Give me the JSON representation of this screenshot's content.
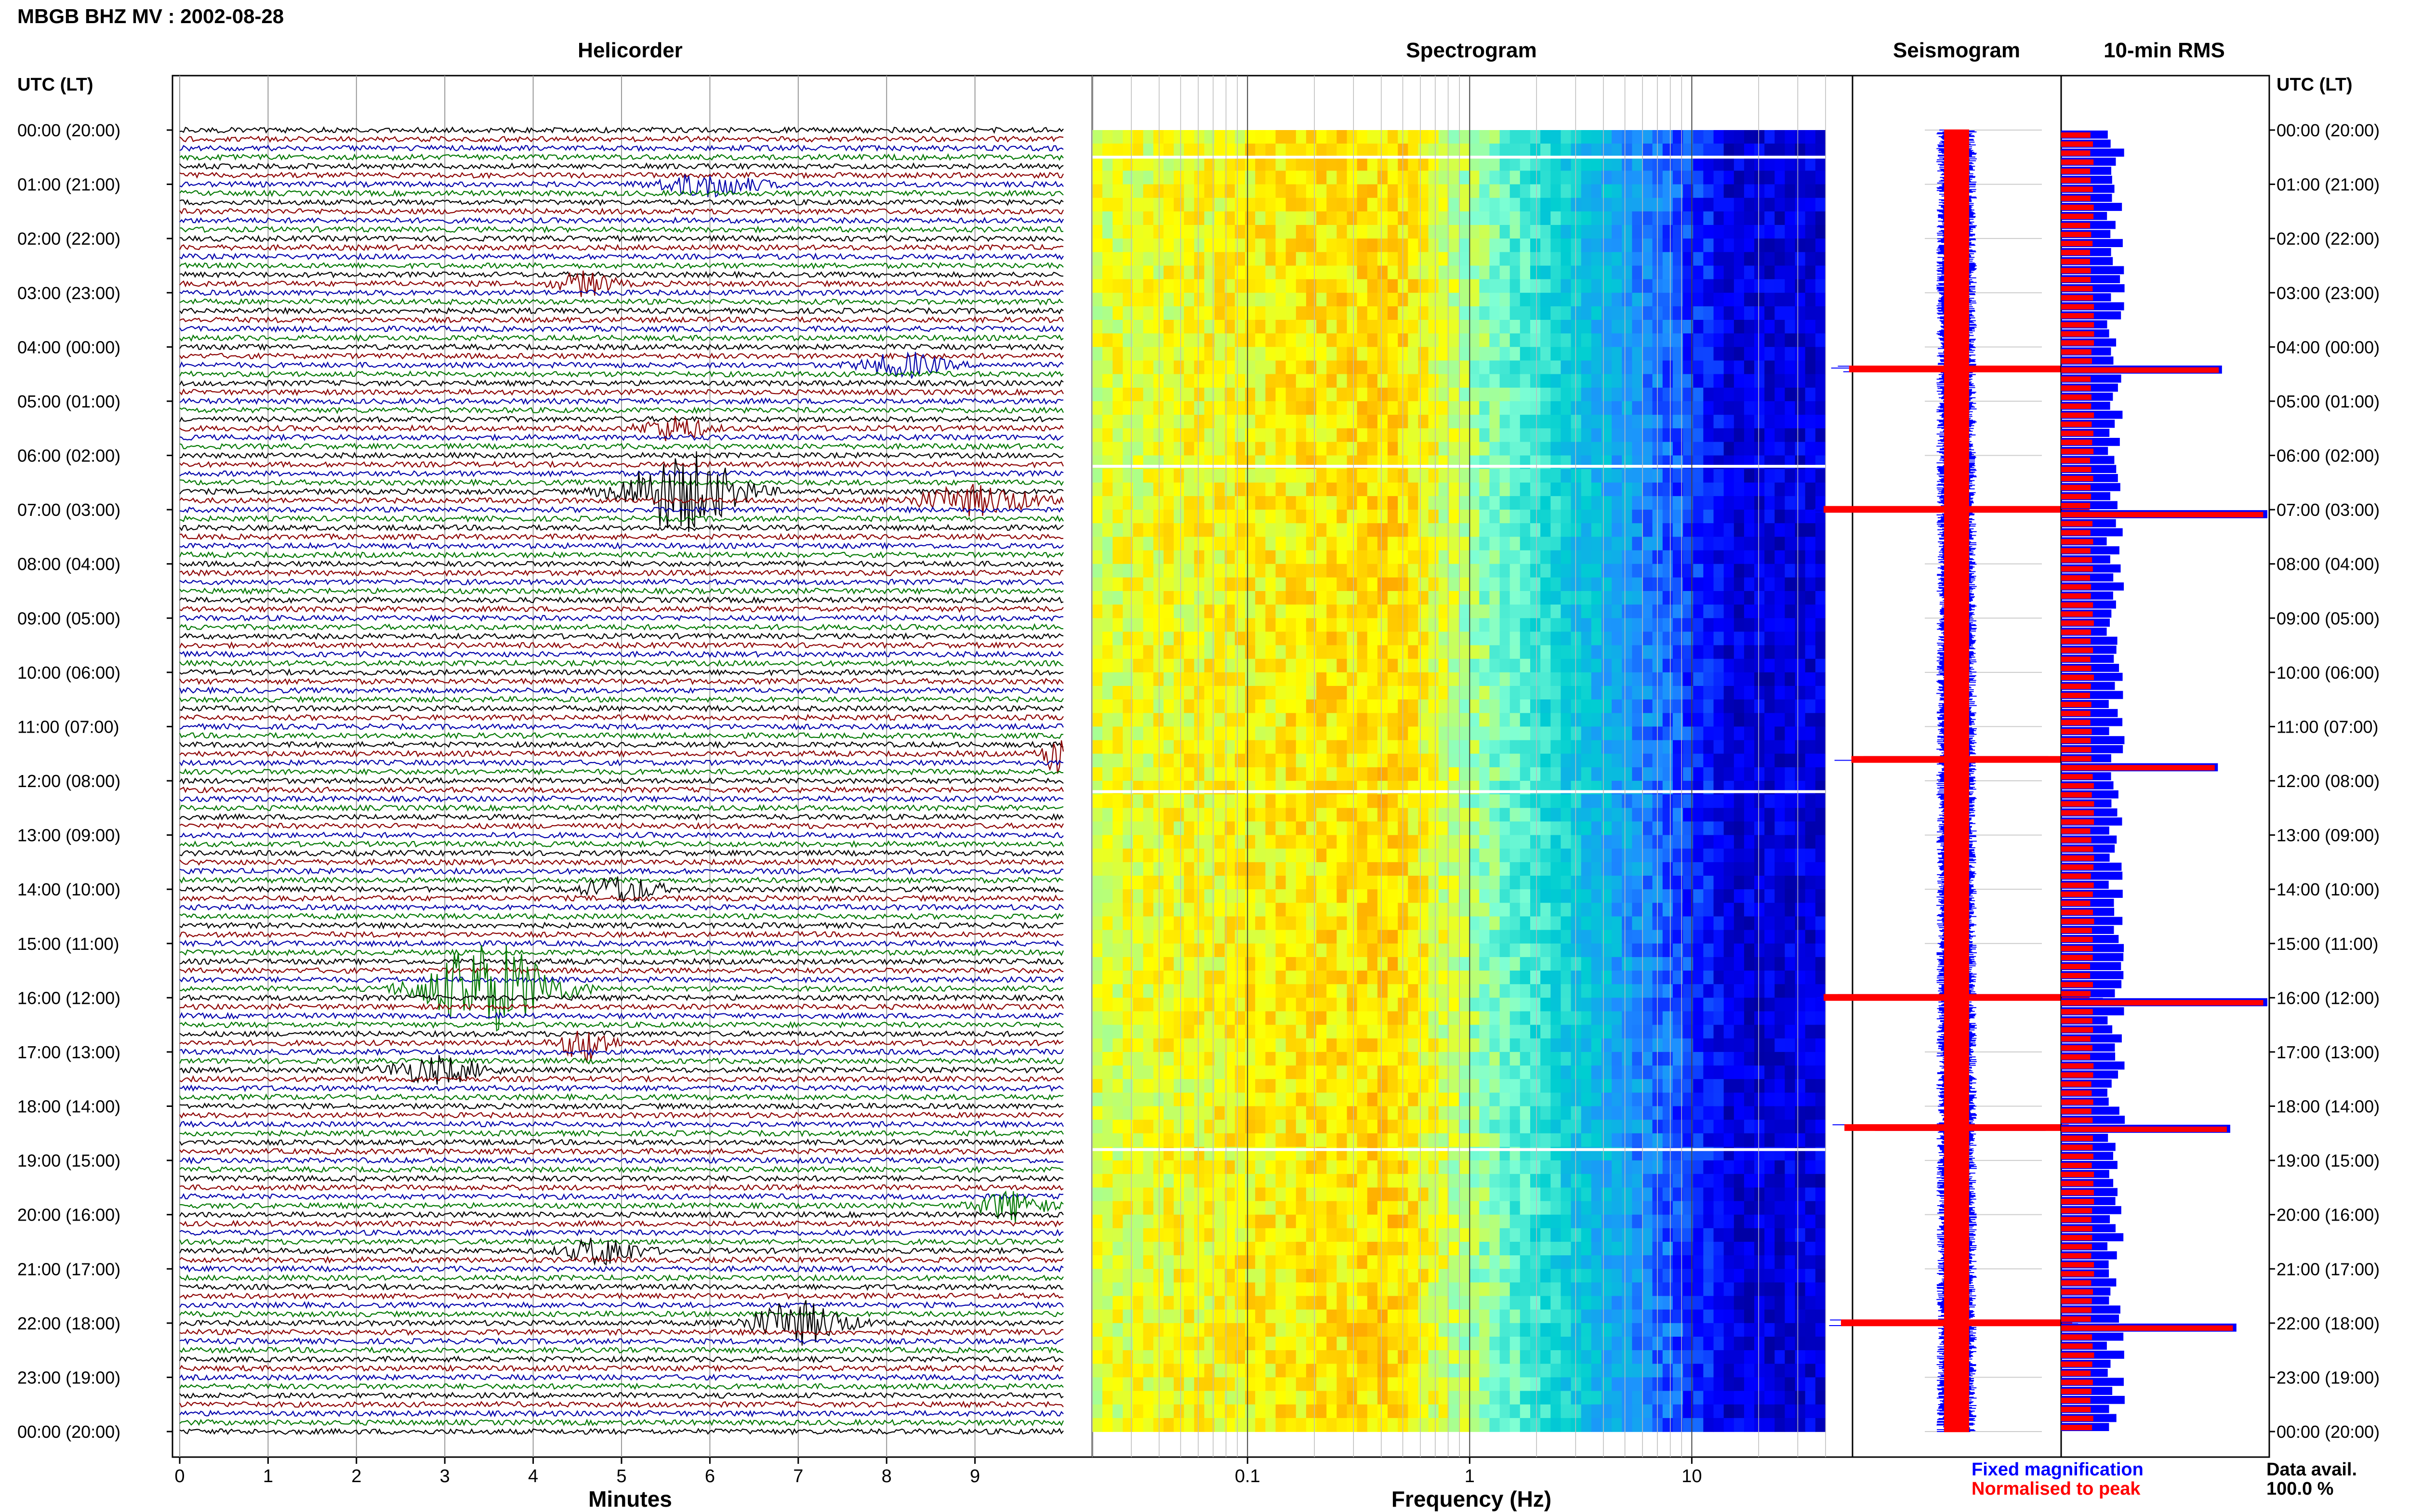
{
  "header": {
    "station_title": "MBGB BHZ MV : 2002-08-28"
  },
  "panels": {
    "helicorder": "Helicorder",
    "spectrogram": "Spectrogram",
    "seismogram": "Seismogram",
    "rms": "10-min RMS"
  },
  "axis": {
    "left_header": "UTC (LT)",
    "right_header": "UTC (LT)",
    "minutes_label": "Minutes",
    "frequency_label": "Frequency (Hz)",
    "minute_ticks": [
      "0",
      "1",
      "2",
      "3",
      "4",
      "5",
      "6",
      "7",
      "8",
      "9"
    ],
    "frequency_ticks": [
      "0.1",
      "1",
      "10"
    ],
    "time_labels": [
      "00:00 (20:00)",
      "01:00 (21:00)",
      "02:00 (22:00)",
      "03:00 (23:00)",
      "04:00 (00:00)",
      "05:00 (01:00)",
      "06:00 (02:00)",
      "07:00 (03:00)",
      "08:00 (04:00)",
      "09:00 (05:00)",
      "10:00 (06:00)",
      "11:00 (07:00)",
      "12:00 (08:00)",
      "13:00 (09:00)",
      "14:00 (10:00)",
      "15:00 (11:00)",
      "16:00 (12:00)",
      "17:00 (13:00)",
      "18:00 (14:00)",
      "19:00 (15:00)",
      "20:00 (16:00)",
      "21:00 (17:00)",
      "22:00 (18:00)",
      "23:00 (19:00)",
      "00:00 (20:00)"
    ]
  },
  "legend": {
    "fixed_label": "Fixed magnification",
    "normalised_label": "Normalised to peak",
    "fixed_color": "#0000ff",
    "normalised_color": "#ff0000"
  },
  "data_avail": {
    "label": "Data avail.",
    "value": "100.0 %"
  },
  "colors": {
    "trace_cycle": [
      "#000000",
      "#8b0000",
      "#0000aa",
      "#007700"
    ],
    "spectrogram_scale": [
      "#00008b",
      "#0000ff",
      "#1e90ff",
      "#00ced1",
      "#7fffd4",
      "#ffff00",
      "#ff8c00",
      "#ff0000"
    ]
  },
  "chart_data": [
    {
      "type": "line",
      "name": "helicorder",
      "xlabel": "Minutes",
      "xlim": [
        0,
        10
      ],
      "row_hours": 24,
      "traces_per_hour": 6,
      "events": [
        {
          "hour": 6.68,
          "minute": 5.7,
          "duration": 1.4,
          "amplitude": 3.5
        },
        {
          "hour": 15.8,
          "minute": 3.5,
          "duration": 1.6,
          "amplitude": 4.0
        },
        {
          "hour": 16.9,
          "minute": 4.6,
          "duration": 0.6,
          "amplitude": 1.6
        },
        {
          "hour": 21.95,
          "minute": 7.0,
          "duration": 1.2,
          "amplitude": 1.8
        },
        {
          "hour": 11.5,
          "minute": 9.9,
          "duration": 0.3,
          "amplitude": 1.8
        },
        {
          "hour": 1.0,
          "minute": 6.0,
          "duration": 1.2,
          "amplitude": 1.0
        },
        {
          "hour": 2.9,
          "minute": 4.6,
          "duration": 0.7,
          "amplitude": 1.0
        },
        {
          "hour": 4.3,
          "minute": 8.2,
          "duration": 1.0,
          "amplitude": 1.0
        },
        {
          "hour": 5.55,
          "minute": 5.6,
          "duration": 0.8,
          "amplitude": 1.0
        },
        {
          "hour": 6.9,
          "minute": 9.0,
          "duration": 1.5,
          "amplitude": 1.2
        },
        {
          "hour": 13.95,
          "minute": 5.0,
          "duration": 0.9,
          "amplitude": 1.2
        },
        {
          "hour": 17.3,
          "minute": 2.9,
          "duration": 1.2,
          "amplitude": 1.1
        },
        {
          "hour": 19.9,
          "minute": 9.4,
          "duration": 0.8,
          "amplitude": 1.3
        },
        {
          "hour": 20.6,
          "minute": 4.8,
          "duration": 0.9,
          "amplitude": 1.2
        }
      ]
    },
    {
      "type": "heatmap",
      "name": "spectrogram",
      "xlabel": "Frequency (Hz)",
      "x_scale": "log",
      "xlim": [
        0.02,
        40
      ],
      "xticks": [
        0.1,
        1,
        10
      ],
      "ylim_hours": [
        0,
        24
      ],
      "peak_frequency_hz": 0.45,
      "max_frequency_shown_hz": 40,
      "gap_hours": [
        0.5,
        6.2,
        12.2,
        18.8
      ]
    },
    {
      "type": "bar",
      "name": "10-min RMS",
      "orientation": "horizontal",
      "bins_per_hour": 6,
      "bins": 144,
      "series": [
        {
          "name": "Fixed magnification",
          "color": "#0000ff"
        },
        {
          "name": "Normalised to peak",
          "color": "#ff0000"
        }
      ],
      "peaks": [
        {
          "hour": 7.0,
          "relative": 1.0
        },
        {
          "hour": 16.0,
          "relative": 1.0
        },
        {
          "hour": 22.0,
          "relative": 0.85
        },
        {
          "hour": 18.4,
          "relative": 0.82
        },
        {
          "hour": 4.4,
          "relative": 0.78
        },
        {
          "hour": 11.6,
          "relative": 0.76
        }
      ]
    }
  ]
}
